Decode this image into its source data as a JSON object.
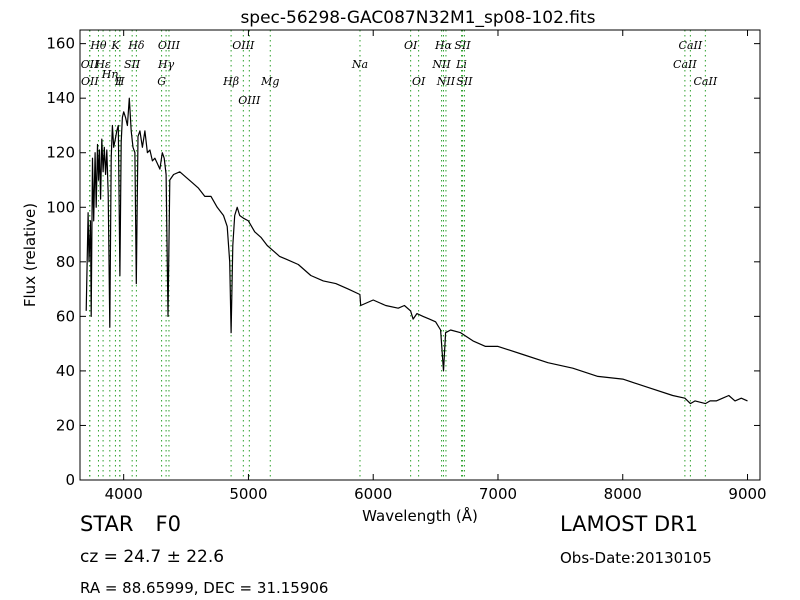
{
  "chart_data": {
    "type": "line",
    "title": "spec-56298-GAC087N32M1_sp08-102.fits",
    "xlabel": "Wavelength (Å)",
    "ylabel": "Flux (relative)",
    "xlim": [
      3650,
      9100
    ],
    "ylim": [
      0,
      165
    ],
    "xticks": [
      4000,
      5000,
      6000,
      7000,
      8000,
      9000
    ],
    "yticks": [
      0,
      20,
      40,
      60,
      80,
      100,
      120,
      140,
      160
    ],
    "grid": false,
    "line_color": "#000000",
    "marker_color": "#2ca02c",
    "series": [
      {
        "x": [
          3700,
          3715,
          3722,
          3734,
          3740,
          3750,
          3760,
          3771,
          3780,
          3790,
          3798,
          3806,
          3815,
          3825,
          3835,
          3845,
          3855,
          3865,
          3876,
          3889,
          3900,
          3910,
          3920,
          3933,
          3945,
          3957,
          3970,
          3980,
          3990,
          4000,
          4015,
          4030,
          4045,
          4060,
          4075,
          4090,
          4101,
          4115,
          4130,
          4150,
          4170,
          4190,
          4210,
          4230,
          4250,
          4270,
          4290,
          4310,
          4325,
          4340,
          4355,
          4370,
          4400,
          4450,
          4500,
          4550,
          4600,
          4650,
          4700,
          4750,
          4800,
          4830,
          4850,
          4861,
          4875,
          4890,
          4910,
          4930,
          4960,
          5000,
          5050,
          5100,
          5150,
          5200,
          5250,
          5300,
          5400,
          5500,
          5600,
          5700,
          5800,
          5893,
          5900,
          6000,
          6100,
          6200,
          6250,
          6300,
          6320,
          6350,
          6400,
          6450,
          6500,
          6540,
          6563,
          6580,
          6620,
          6700,
          6800,
          6900,
          7000,
          7200,
          7400,
          7600,
          7800,
          8000,
          8200,
          8400,
          8498,
          8542,
          8580,
          8662,
          8700,
          8750,
          8800,
          8850,
          8900,
          8950,
          9000
        ],
        "y": [
          62,
          98,
          80,
          95,
          60,
          118,
          95,
          120,
          100,
          123,
          110,
          121,
          103,
          125,
          113,
          122,
          112,
          121,
          105,
          56,
          118,
          130,
          122,
          125,
          128,
          130,
          75,
          124,
          133,
          135,
          133,
          130,
          140,
          128,
          122,
          120,
          72,
          126,
          128,
          122,
          128,
          120,
          121,
          117,
          118,
          116,
          114,
          120,
          118,
          112,
          60,
          110,
          112,
          113,
          111,
          109,
          107,
          104,
          104,
          100,
          97,
          93,
          80,
          54,
          86,
          97,
          100,
          97,
          96,
          95,
          91,
          89,
          86,
          84,
          82,
          81,
          79,
          75,
          73,
          72,
          70,
          68,
          64,
          66,
          64,
          63,
          64,
          62,
          59,
          61,
          60,
          59,
          58,
          55,
          40,
          54,
          55,
          54,
          51,
          49,
          49,
          46,
          43,
          41,
          38,
          37,
          34,
          31,
          30,
          28,
          29,
          28,
          29,
          29,
          30,
          31,
          29,
          30,
          29
        ]
      }
    ],
    "line_markers": [
      {
        "label": "Hθ",
        "x": 3798,
        "row": 0
      },
      {
        "label": "K",
        "x": 3934,
        "row": 0
      },
      {
        "label": "Hδ",
        "x": 4102,
        "row": 0
      },
      {
        "label": "OIII",
        "x": 4363,
        "row": 0
      },
      {
        "label": "OIII",
        "x": 4959,
        "row": 0
      },
      {
        "label": "OI",
        "x": 6300,
        "row": 0
      },
      {
        "label": "Hα",
        "x": 6563,
        "row": 0
      },
      {
        "label": "SII",
        "x": 6716,
        "row": 0
      },
      {
        "label": "CaII",
        "x": 8542,
        "row": 0
      },
      {
        "label": "OII",
        "x": 3727,
        "row": 1
      },
      {
        "label": "Hε",
        "x": 3835,
        "row": 1
      },
      {
        "label": "SII",
        "x": 4068,
        "row": 1
      },
      {
        "label": "Hγ",
        "x": 4340,
        "row": 1
      },
      {
        "label": "CaII",
        "x": 8498,
        "row": 1
      },
      {
        "label": "Hη",
        "x": 3889,
        "row": 1.5
      },
      {
        "label": "OII",
        "x": 3729,
        "row": 2
      },
      {
        "label": "I",
        "x": 3969,
        "row": 2
      },
      {
        "label": "H",
        "x": 3969,
        "row": 2
      },
      {
        "label": "Hβ",
        "x": 4861,
        "row": 2
      },
      {
        "label": "Mg",
        "x": 5175,
        "row": 2
      },
      {
        "label": "Na",
        "x": 5894,
        "row": 1
      },
      {
        "label": "NII",
        "x": 6548,
        "row": 1
      },
      {
        "label": "Li",
        "x": 6708,
        "row": 1
      },
      {
        "label": "OI",
        "x": 6364,
        "row": 2
      },
      {
        "label": "NII",
        "x": 6583,
        "row": 2
      },
      {
        "label": "SII",
        "x": 6731,
        "row": 2
      },
      {
        "label": "CaII",
        "x": 8662,
        "row": 2
      },
      {
        "label": "G",
        "x": 4304,
        "row": 2
      },
      {
        "label": "OIII",
        "x": 5007,
        "row": 3
      }
    ]
  },
  "footer": {
    "object_class": "STAR",
    "subclass": "F0",
    "cz_prefix": "cz = 24.7 ",
    "cz_pm": "±",
    "cz_suffix": " 22.6",
    "coords": "RA = 88.65999, DEC = 31.15906",
    "survey": "LAMOST DR1",
    "obs_date": "Obs-Date:20130105"
  }
}
